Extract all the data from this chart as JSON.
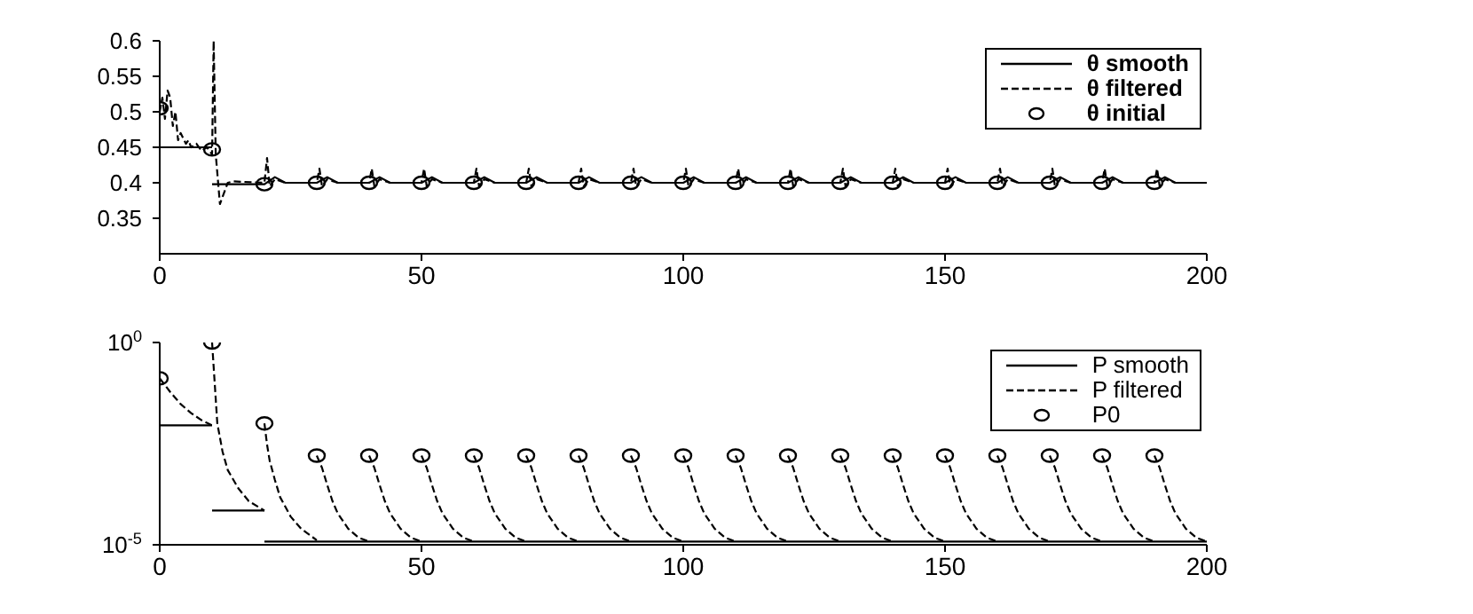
{
  "chart_data": [
    {
      "type": "line",
      "xlim": [
        0,
        200
      ],
      "xticks": [
        0,
        50,
        100,
        150,
        200
      ],
      "ylim": [
        0.3,
        0.6
      ],
      "yticks": [
        0.35,
        0.4,
        0.45,
        0.5,
        0.55,
        0.6
      ],
      "legend": "top right",
      "grid": false,
      "series": [
        {
          "name": "θ smooth",
          "line_style": "solid",
          "color": "#000000",
          "x": [
            0,
            10
          ],
          "values": [
            0.45,
            0.45
          ]
        },
        {
          "name": "θ filtered",
          "line_style": "dashed",
          "color": "#000000",
          "x": [
            0,
            0.5,
            1,
            1.5,
            2,
            2.5,
            3,
            3.5,
            4,
            5,
            5.5,
            6,
            7,
            8,
            9,
            10,
            10.3,
            10.7,
            11.5,
            13,
            14,
            20,
            20.5,
            21,
            22,
            24,
            30,
            30.5,
            31,
            32,
            34,
            40,
            40.5,
            41,
            42,
            44,
            50,
            50.5,
            51,
            52,
            54,
            60,
            60.5,
            61,
            62,
            64,
            70,
            70.5,
            71,
            72,
            74,
            80,
            80.5,
            81,
            82,
            84,
            90,
            90.5,
            91,
            92,
            94,
            100,
            100.5,
            101,
            102,
            104,
            110,
            110.5,
            111,
            112,
            114,
            120,
            120.5,
            121,
            122,
            124,
            130,
            130.5,
            131,
            132,
            134,
            140,
            140.5,
            141,
            142,
            144,
            150,
            150.5,
            151,
            152,
            154,
            160,
            160.5,
            161,
            162,
            164,
            170,
            170.5,
            171,
            172,
            174,
            180,
            180.5,
            181,
            182,
            184,
            190,
            190.5,
            191,
            192,
            194,
            200
          ],
          "values": [
            0.5,
            0.52,
            0.49,
            0.53,
            0.52,
            0.48,
            0.5,
            0.46,
            0.47,
            0.455,
            0.46,
            0.45,
            0.455,
            0.445,
            0.45,
            0.44,
            0.6,
            0.44,
            0.37,
            0.4,
            0.402,
            0.4,
            0.435,
            0.395,
            0.405,
            0.4,
            0.4,
            0.42,
            0.395,
            0.405,
            0.4,
            0.4,
            0.42,
            0.395,
            0.405,
            0.4,
            0.4,
            0.42,
            0.395,
            0.405,
            0.4,
            0.4,
            0.42,
            0.395,
            0.405,
            0.4,
            0.4,
            0.42,
            0.395,
            0.405,
            0.4,
            0.4,
            0.42,
            0.395,
            0.405,
            0.4,
            0.4,
            0.42,
            0.395,
            0.405,
            0.4,
            0.4,
            0.42,
            0.395,
            0.405,
            0.4,
            0.4,
            0.42,
            0.395,
            0.405,
            0.4,
            0.4,
            0.42,
            0.395,
            0.405,
            0.4,
            0.4,
            0.42,
            0.395,
            0.405,
            0.4,
            0.4,
            0.42,
            0.395,
            0.405,
            0.4,
            0.4,
            0.42,
            0.395,
            0.405,
            0.4,
            0.4,
            0.42,
            0.395,
            0.405,
            0.4,
            0.4,
            0.42,
            0.395,
            0.405,
            0.4,
            0.4,
            0.42,
            0.395,
            0.405,
            0.4,
            0.4,
            0.42,
            0.395,
            0.405,
            0.4,
            0.4
          ]
        },
        {
          "name": "θ initial",
          "type": "scatter",
          "marker": "circle",
          "color": "#000000",
          "x": [
            0,
            10,
            20,
            30,
            40,
            50,
            60,
            70,
            80,
            90,
            100,
            110,
            120,
            130,
            140,
            150,
            160,
            170,
            180,
            190
          ],
          "values": [
            0.505,
            0.447,
            0.398,
            0.4,
            0.4,
            0.4,
            0.4,
            0.4,
            0.4,
            0.4,
            0.4,
            0.4,
            0.4,
            0.4,
            0.4,
            0.4,
            0.4,
            0.4,
            0.4,
            0.4
          ]
        },
        {
          "line_style": "solid",
          "color": "#000000",
          "x": [
            10,
            20,
            22,
            24,
            30,
            32,
            34,
            40,
            42,
            44,
            50,
            52,
            54,
            60,
            62,
            64,
            70,
            72,
            74,
            80,
            82,
            84,
            90,
            92,
            94,
            100,
            102,
            104,
            110,
            112,
            114,
            120,
            122,
            124,
            130,
            132,
            134,
            140,
            142,
            144,
            150,
            152,
            154,
            160,
            162,
            164,
            170,
            172,
            174,
            180,
            182,
            184,
            190,
            192,
            194,
            200
          ],
          "values": [
            0.398,
            0.398,
            0.408,
            0.4,
            0.4,
            0.408,
            0.4,
            0.4,
            0.408,
            0.4,
            0.4,
            0.408,
            0.4,
            0.4,
            0.408,
            0.4,
            0.4,
            0.408,
            0.4,
            0.4,
            0.408,
            0.4,
            0.4,
            0.408,
            0.4,
            0.4,
            0.408,
            0.4,
            0.4,
            0.408,
            0.4,
            0.4,
            0.408,
            0.4,
            0.4,
            0.408,
            0.4,
            0.4,
            0.408,
            0.4,
            0.4,
            0.408,
            0.4,
            0.4,
            0.408,
            0.4,
            0.4,
            0.408,
            0.4,
            0.4,
            0.408,
            0.4,
            0.4,
            0.408,
            0.4,
            0.4
          ]
        }
      ]
    },
    {
      "type": "line",
      "log": "y",
      "xlim": [
        0,
        200
      ],
      "xticks": [
        0,
        50,
        100,
        150,
        200
      ],
      "ylim": [
        1e-05,
        1
      ],
      "yticks": [
        {
          "value": 1e-05,
          "label": "10$^{-5}$"
        },
        {
          "value": 1,
          "label": "10$^{0}$"
        }
      ],
      "legend": "top right",
      "grid": false,
      "series": [
        {
          "name": "P smooth",
          "line_style": "solid",
          "color": "#000000",
          "x": [
            0,
            10
          ],
          "values": [
            0.009,
            0.009
          ]
        },
        {
          "name": "P filtered",
          "line_style": "dashed",
          "color": "#000000",
          "x": [
            0,
            2,
            4,
            6,
            8,
            10
          ],
          "values": [
            0.13,
            0.06,
            0.03,
            0.018,
            0.012,
            0.009
          ]
        },
        {
          "name": "P0",
          "type": "scatter",
          "marker": "circle",
          "color": "#000000",
          "x": [
            0,
            10,
            20,
            30,
            40,
            50,
            60,
            70,
            80,
            90,
            100,
            110,
            120,
            130,
            140,
            150,
            160,
            170,
            180,
            190
          ],
          "values": [
            0.13,
            1,
            0.01,
            0.0016,
            0.0016,
            0.0016,
            0.0016,
            0.0016,
            0.0016,
            0.0016,
            0.0016,
            0.0016,
            0.0016,
            0.0016,
            0.0016,
            0.0016,
            0.0016,
            0.0016,
            0.0016,
            0.0016
          ]
        },
        {
          "line_style": "solid",
          "color": "#000000",
          "x": [
            10,
            20
          ],
          "values": [
            7e-05,
            7e-05
          ]
        },
        {
          "line_style": "solid",
          "color": "#000000",
          "x": [
            20,
            200
          ],
          "values": [
            1.2e-05,
            1.2e-05
          ]
        },
        {
          "line_style": "dashed",
          "color": "#000000",
          "x": [
            10,
            10.5,
            11,
            12,
            13,
            15,
            17,
            20
          ],
          "values": [
            1,
            0.1,
            0.01,
            0.002,
            0.0007,
            0.00025,
            0.00012,
            7e-05
          ]
        },
        {
          "line_style": "dashed",
          "color": "#000000",
          "x": [
            20,
            20.5,
            21,
            22,
            23,
            25,
            27,
            30
          ],
          "values": [
            0.01,
            0.003,
            0.0012,
            0.0004,
            0.00015,
            5e-05,
            2.5e-05,
            1.3e-05
          ]
        },
        {
          "line_style": "dashed",
          "color": "#000000",
          "x": [
            30,
            31,
            32,
            33,
            34,
            36,
            38,
            40
          ],
          "values": [
            0.0016,
            0.0008,
            0.0003,
            0.00012,
            6e-05,
            2.5e-05,
            1.5e-05,
            1.2e-05
          ]
        },
        {
          "line_style": "dashed",
          "color": "#000000",
          "x": [
            40,
            41,
            42,
            43,
            44,
            46,
            48,
            50
          ],
          "values": [
            0.0016,
            0.0008,
            0.0003,
            0.00012,
            6e-05,
            2.5e-05,
            1.5e-05,
            1.2e-05
          ]
        },
        {
          "line_style": "dashed",
          "color": "#000000",
          "x": [
            50,
            51,
            52,
            53,
            54,
            56,
            58,
            60
          ],
          "values": [
            0.0016,
            0.0008,
            0.0003,
            0.00012,
            6e-05,
            2.5e-05,
            1.5e-05,
            1.2e-05
          ]
        },
        {
          "line_style": "dashed",
          "color": "#000000",
          "x": [
            60,
            61,
            62,
            63,
            64,
            66,
            68,
            70
          ],
          "values": [
            0.0016,
            0.0008,
            0.0003,
            0.00012,
            6e-05,
            2.5e-05,
            1.5e-05,
            1.2e-05
          ]
        },
        {
          "line_style": "dashed",
          "color": "#000000",
          "x": [
            70,
            71,
            72,
            73,
            74,
            76,
            78,
            80
          ],
          "values": [
            0.0016,
            0.0008,
            0.0003,
            0.00012,
            6e-05,
            2.5e-05,
            1.5e-05,
            1.2e-05
          ]
        },
        {
          "line_style": "dashed",
          "color": "#000000",
          "x": [
            80,
            81,
            82,
            83,
            84,
            86,
            88,
            90
          ],
          "values": [
            0.0016,
            0.0008,
            0.0003,
            0.00012,
            6e-05,
            2.5e-05,
            1.5e-05,
            1.2e-05
          ]
        },
        {
          "line_style": "dashed",
          "color": "#000000",
          "x": [
            90,
            91,
            92,
            93,
            94,
            96,
            98,
            100
          ],
          "values": [
            0.0016,
            0.0008,
            0.0003,
            0.00012,
            6e-05,
            2.5e-05,
            1.5e-05,
            1.2e-05
          ]
        },
        {
          "line_style": "dashed",
          "color": "#000000",
          "x": [
            100,
            101,
            102,
            103,
            104,
            106,
            108,
            110
          ],
          "values": [
            0.0016,
            0.0008,
            0.0003,
            0.00012,
            6e-05,
            2.5e-05,
            1.5e-05,
            1.2e-05
          ]
        },
        {
          "line_style": "dashed",
          "color": "#000000",
          "x": [
            110,
            111,
            112,
            113,
            114,
            116,
            118,
            120
          ],
          "values": [
            0.0016,
            0.0008,
            0.0003,
            0.00012,
            6e-05,
            2.5e-05,
            1.5e-05,
            1.2e-05
          ]
        },
        {
          "line_style": "dashed",
          "color": "#000000",
          "x": [
            120,
            121,
            122,
            123,
            124,
            126,
            128,
            130
          ],
          "values": [
            0.0016,
            0.0008,
            0.0003,
            0.00012,
            6e-05,
            2.5e-05,
            1.5e-05,
            1.2e-05
          ]
        },
        {
          "line_style": "dashed",
          "color": "#000000",
          "x": [
            130,
            131,
            132,
            133,
            134,
            136,
            138,
            140
          ],
          "values": [
            0.0016,
            0.0008,
            0.0003,
            0.00012,
            6e-05,
            2.5e-05,
            1.5e-05,
            1.2e-05
          ]
        },
        {
          "line_style": "dashed",
          "color": "#000000",
          "x": [
            140,
            141,
            142,
            143,
            144,
            146,
            148,
            150
          ],
          "values": [
            0.0016,
            0.0008,
            0.0003,
            0.00012,
            6e-05,
            2.5e-05,
            1.5e-05,
            1.2e-05
          ]
        },
        {
          "line_style": "dashed",
          "color": "#000000",
          "x": [
            150,
            151,
            152,
            153,
            154,
            156,
            158,
            160
          ],
          "values": [
            0.0016,
            0.0008,
            0.0003,
            0.00012,
            6e-05,
            2.5e-05,
            1.5e-05,
            1.2e-05
          ]
        },
        {
          "line_style": "dashed",
          "color": "#000000",
          "x": [
            160,
            161,
            162,
            163,
            164,
            166,
            168,
            170
          ],
          "values": [
            0.0016,
            0.0008,
            0.0003,
            0.00012,
            6e-05,
            2.5e-05,
            1.5e-05,
            1.2e-05
          ]
        },
        {
          "line_style": "dashed",
          "color": "#000000",
          "x": [
            170,
            171,
            172,
            173,
            174,
            176,
            178,
            180
          ],
          "values": [
            0.0016,
            0.0008,
            0.0003,
            0.00012,
            6e-05,
            2.5e-05,
            1.5e-05,
            1.2e-05
          ]
        },
        {
          "line_style": "dashed",
          "color": "#000000",
          "x": [
            180,
            181,
            182,
            183,
            184,
            186,
            188,
            190
          ],
          "values": [
            0.0016,
            0.0008,
            0.0003,
            0.00012,
            6e-05,
            2.5e-05,
            1.5e-05,
            1.2e-05
          ]
        },
        {
          "line_style": "dashed",
          "color": "#000000",
          "x": [
            190,
            191,
            192,
            193,
            194,
            196,
            198,
            200
          ],
          "values": [
            0.0016,
            0.0008,
            0.0003,
            0.00012,
            6e-05,
            2.5e-05,
            1.5e-05,
            1.2e-05
          ]
        }
      ]
    }
  ]
}
